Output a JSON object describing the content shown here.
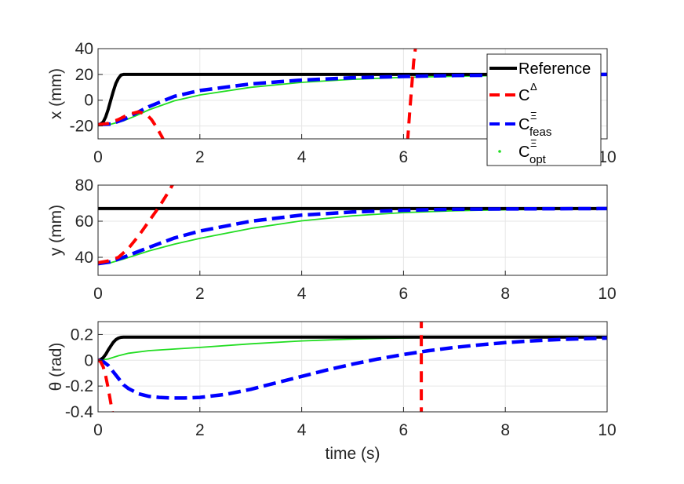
{
  "chart_data": [
    {
      "type": "line",
      "ylabel": "x (mm)",
      "xlabel": "",
      "xlim": [
        0,
        10
      ],
      "ylim": [
        -30,
        40
      ],
      "xticks": [
        "0",
        "2",
        "4",
        "6",
        "8",
        "10"
      ],
      "yticks": [
        "-20",
        "0",
        "20",
        "40"
      ],
      "series": [
        {
          "name": "Reference",
          "color": "#000000",
          "x": [
            0,
            0.05,
            0.1,
            0.15,
            0.2,
            0.25,
            0.3,
            0.35,
            0.4,
            0.45,
            0.5,
            10
          ],
          "y": [
            -19,
            -18.5,
            -17,
            -13,
            -7,
            0,
            7,
            13,
            17,
            19.5,
            20,
            20
          ]
        },
        {
          "name": "C^Δ",
          "color": "#ff0000",
          "x": [
            0,
            0.2,
            0.4,
            0.6,
            0.8,
            0.95,
            1.05,
            1.15,
            1.25,
            1.3
          ],
          "y": [
            -19,
            -18,
            -15,
            -11,
            -9,
            -11,
            -15,
            -21,
            -28,
            -32
          ],
          "x2": [
            6.08,
            6.12,
            6.16,
            6.2,
            6.24
          ],
          "y2": [
            -32,
            -10,
            10,
            30,
            42
          ]
        },
        {
          "name": "C^Ξ_feas",
          "color": "#0000ff",
          "x": [
            0,
            0.25,
            0.5,
            0.75,
            1,
            1.5,
            2,
            3,
            4,
            5,
            6,
            7,
            8,
            9,
            10
          ],
          "y": [
            -19,
            -18.5,
            -15,
            -10,
            -5,
            3,
            7.5,
            12.6,
            15.6,
            17.4,
            18.4,
            19.1,
            19.5,
            19.8,
            20
          ]
        },
        {
          "name": "C^Ξ_opt",
          "color": "#22dd22",
          "x": [
            0,
            0.25,
            0.5,
            0.75,
            1,
            1.5,
            2,
            3,
            4,
            5,
            6,
            7,
            8,
            9,
            10
          ],
          "y": [
            -19,
            -18.7,
            -16,
            -12,
            -7.5,
            -0.5,
            4,
            10,
            13.8,
            16.2,
            17.7,
            18.6,
            19.2,
            19.6,
            19.8
          ]
        }
      ]
    },
    {
      "type": "line",
      "ylabel": "y (mm)",
      "xlabel": "",
      "xlim": [
        0,
        10
      ],
      "ylim": [
        30,
        80
      ],
      "xticks": [
        "0",
        "2",
        "4",
        "6",
        "8",
        "10"
      ],
      "yticks": [
        "40",
        "60",
        "80"
      ],
      "series": [
        {
          "name": "Reference",
          "color": "#000000",
          "x": [
            0,
            10
          ],
          "y": [
            67,
            67
          ]
        },
        {
          "name": "C^Δ",
          "color": "#ff0000",
          "x": [
            0,
            0.2,
            0.4,
            0.6,
            0.8,
            1.0,
            1.2,
            1.4,
            1.5
          ],
          "y": [
            37,
            38,
            40,
            45,
            52,
            60,
            68,
            77,
            82
          ]
        },
        {
          "name": "C^Ξ_feas",
          "color": "#0000ff",
          "x": [
            0,
            0.25,
            0.5,
            1,
            1.5,
            2,
            3,
            4,
            5,
            6,
            7,
            8,
            9,
            10
          ],
          "y": [
            36.5,
            37.5,
            40,
            45.5,
            50.7,
            54.5,
            60,
            63.4,
            65.1,
            66.1,
            66.6,
            66.8,
            66.9,
            67
          ]
        },
        {
          "name": "C^Ξ_opt",
          "color": "#22dd22",
          "x": [
            0,
            0.25,
            0.5,
            1,
            1.5,
            2,
            3,
            4,
            5,
            6,
            7,
            8,
            9,
            10
          ],
          "y": [
            36,
            37,
            39,
            43.5,
            47.3,
            50.5,
            56,
            60.2,
            63,
            64.8,
            65.8,
            66.3,
            66.6,
            66.8
          ]
        }
      ]
    },
    {
      "type": "line",
      "ylabel": "θ (rad)",
      "xlabel": "time (s)",
      "xlim": [
        0,
        10
      ],
      "ylim": [
        -0.4,
        0.3
      ],
      "xticks": [
        "0",
        "2",
        "4",
        "6",
        "8",
        "10"
      ],
      "yticks": [
        "-0.4",
        "-0.2",
        "0",
        "0.2"
      ],
      "series": [
        {
          "name": "Reference",
          "color": "#000000",
          "x": [
            0,
            0.05,
            0.1,
            0.15,
            0.2,
            0.25,
            0.3,
            0.35,
            0.4,
            0.45,
            0.5,
            10
          ],
          "y": [
            0,
            0.005,
            0.02,
            0.045,
            0.08,
            0.11,
            0.14,
            0.16,
            0.172,
            0.178,
            0.18,
            0.18
          ]
        },
        {
          "name": "C^Δ",
          "color": "#ff0000",
          "x": [
            0,
            0.05,
            0.1,
            0.15,
            0.2,
            0.25,
            0.3
          ],
          "y": [
            0,
            -0.01,
            -0.05,
            -0.12,
            -0.22,
            -0.33,
            -0.45
          ],
          "x2": [
            6.35,
            6.35
          ],
          "y2": [
            -0.45,
            0.32
          ]
        },
        {
          "name": "C^Ξ_feas",
          "color": "#0000ff",
          "x": [
            0,
            0.1,
            0.2,
            0.3,
            0.4,
            0.5,
            0.6,
            0.8,
            1.0,
            1.2,
            1.4,
            1.7,
            2.0,
            2.5,
            3.0,
            3.5,
            4.0,
            4.5,
            5.0,
            5.5,
            6.0,
            6.5,
            7.0,
            7.5,
            8.0,
            8.5,
            9.0,
            9.5,
            10
          ],
          "y": [
            0,
            -0.01,
            -0.04,
            -0.09,
            -0.14,
            -0.19,
            -0.22,
            -0.26,
            -0.28,
            -0.288,
            -0.292,
            -0.293,
            -0.288,
            -0.265,
            -0.225,
            -0.175,
            -0.125,
            -0.075,
            -0.03,
            0.01,
            0.045,
            0.075,
            0.1,
            0.12,
            0.137,
            0.15,
            0.16,
            0.167,
            0.172
          ]
        },
        {
          "name": "C^Ξ_opt",
          "color": "#22dd22",
          "x": [
            0,
            0.2,
            0.4,
            0.6,
            1.0,
            2.0,
            3.0,
            4.0,
            5.0,
            6.0,
            7.0,
            8.0,
            9.0,
            10
          ],
          "y": [
            0,
            0.01,
            0.035,
            0.055,
            0.075,
            0.1,
            0.128,
            0.15,
            0.165,
            0.173,
            0.177,
            0.179,
            0.18,
            0.18
          ]
        }
      ]
    }
  ],
  "legend": {
    "placement": "top-right",
    "entries": [
      {
        "label": "Reference",
        "base": "Reference",
        "sup": "",
        "sub": "",
        "color": "#000000",
        "style": "solid"
      },
      {
        "label": "C^Δ",
        "base": "C",
        "sup": "Δ",
        "sub": "",
        "color": "#ff0000",
        "style": "dashed"
      },
      {
        "label": "C^Ξ_feas",
        "base": "C",
        "sup": "Ξ",
        "sub": "feas",
        "color": "#0000ff",
        "style": "dashed"
      },
      {
        "label": "C^Ξ_opt",
        "base": "C",
        "sup": "Ξ",
        "sub": "opt",
        "color": "#22dd22",
        "style": "dot"
      }
    ]
  }
}
